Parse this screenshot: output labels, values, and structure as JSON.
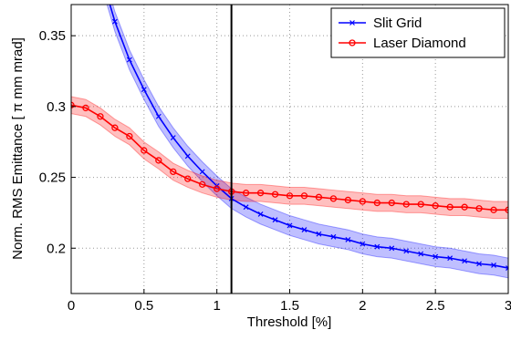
{
  "chart_data": {
    "type": "line",
    "xlabel": "Threshold [%]",
    "ylabel": "Norm. RMS Emittance [ π mm mrad]",
    "xlim": [
      0,
      3
    ],
    "ylim": [
      0.168,
      0.372
    ],
    "xticks": [
      0,
      0.5,
      1,
      1.5,
      2,
      2.5,
      3
    ],
    "yticks": [
      0.2,
      0.25,
      0.3,
      0.35
    ],
    "grid": true,
    "legend": "northeast",
    "vline_x": 1.1,
    "series": [
      {
        "name": "Slit Grid",
        "color": "#0000ff",
        "marker": "x",
        "error": 0.007,
        "x": [
          0.2,
          0.3,
          0.4,
          0.5,
          0.6,
          0.7,
          0.8,
          0.9,
          1.0,
          1.1,
          1.2,
          1.3,
          1.4,
          1.5,
          1.6,
          1.7,
          1.8,
          1.9,
          2.0,
          2.1,
          2.2,
          2.3,
          2.4,
          2.5,
          2.6,
          2.7,
          2.8,
          2.9,
          3.0
        ],
        "values": [
          0.395,
          0.36,
          0.333,
          0.312,
          0.293,
          0.278,
          0.265,
          0.254,
          0.244,
          0.235,
          0.229,
          0.224,
          0.22,
          0.216,
          0.213,
          0.21,
          0.208,
          0.206,
          0.203,
          0.201,
          0.2,
          0.198,
          0.196,
          0.194,
          0.193,
          0.191,
          0.189,
          0.188,
          0.186
        ]
      },
      {
        "name": "Laser Diamond",
        "color": "#ff0000",
        "marker": "o",
        "error": 0.006,
        "x": [
          0,
          0.1,
          0.2,
          0.3,
          0.4,
          0.5,
          0.6,
          0.7,
          0.8,
          0.9,
          1.0,
          1.1,
          1.2,
          1.3,
          1.4,
          1.5,
          1.6,
          1.7,
          1.8,
          1.9,
          2.0,
          2.1,
          2.2,
          2.3,
          2.4,
          2.5,
          2.6,
          2.7,
          2.8,
          2.9,
          3.0
        ],
        "values": [
          0.301,
          0.299,
          0.293,
          0.285,
          0.279,
          0.269,
          0.262,
          0.254,
          0.249,
          0.245,
          0.242,
          0.24,
          0.239,
          0.239,
          0.238,
          0.237,
          0.237,
          0.236,
          0.235,
          0.234,
          0.233,
          0.232,
          0.232,
          0.231,
          0.231,
          0.23,
          0.229,
          0.229,
          0.228,
          0.227,
          0.227
        ]
      }
    ]
  }
}
